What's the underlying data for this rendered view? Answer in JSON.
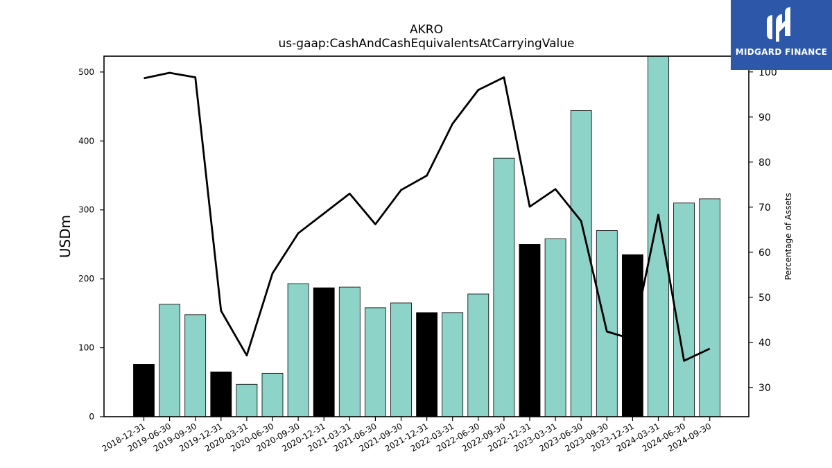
{
  "chart_data": {
    "type": "bar",
    "title": "AKRO",
    "subtitle": "us-gaap:CashAndCashEquivalentsAtCarryingValue",
    "ylabel": "USDm",
    "y2label": "Percentage of Assets",
    "ylim": [
      0,
      523
    ],
    "y2lim": [
      23.5,
      103.5
    ],
    "yticks": [
      0,
      100,
      200,
      300,
      400,
      500
    ],
    "y2ticks": [
      30,
      40,
      50,
      60,
      70,
      80,
      90,
      100
    ],
    "categories": [
      "2018-12-31",
      "2019-06-30",
      "2019-09-30",
      "2019-12-31",
      "2020-03-31",
      "2020-06-30",
      "2020-09-30",
      "2020-12-31",
      "2021-03-31",
      "2021-06-30",
      "2021-09-30",
      "2021-12-31",
      "2022-03-31",
      "2022-06-30",
      "2022-09-30",
      "2022-12-31",
      "2023-03-31",
      "2023-06-30",
      "2023-09-30",
      "2023-12-31",
      "2024-03-31",
      "2024-06-30",
      "2024-09-30"
    ],
    "series": [
      {
        "type": "bar",
        "values": [
          76,
          163,
          148,
          65,
          47,
          63,
          193,
          187,
          188,
          158,
          165,
          151,
          151,
          178,
          375,
          250,
          258,
          444,
          270,
          235,
          523,
          310,
          316
        ],
        "colors": [
          "#000000",
          "#8dd3c7",
          "#8dd3c7",
          "#000000",
          "#8dd3c7",
          "#8dd3c7",
          "#8dd3c7",
          "#000000",
          "#8dd3c7",
          "#8dd3c7",
          "#8dd3c7",
          "#000000",
          "#8dd3c7",
          "#8dd3c7",
          "#8dd3c7",
          "#000000",
          "#8dd3c7",
          "#8dd3c7",
          "#8dd3c7",
          "#000000",
          "#8dd3c7",
          "#8dd3c7",
          "#8dd3c7"
        ]
      },
      {
        "type": "line",
        "axis": "right",
        "color": "#000000",
        "values": [
          98.6,
          99.8,
          98.8,
          47,
          37.1,
          55.3,
          64.2,
          68.6,
          73,
          66.2,
          73.8,
          77,
          88.5,
          96,
          98.8,
          70.1,
          74,
          66.9,
          42.4,
          40.7,
          68.3,
          35.9,
          38.6
        ]
      }
    ],
    "grid": false,
    "legend": "none"
  },
  "logo": {
    "text": "MIDGARD FINANCE",
    "background": "#2d57a8"
  }
}
